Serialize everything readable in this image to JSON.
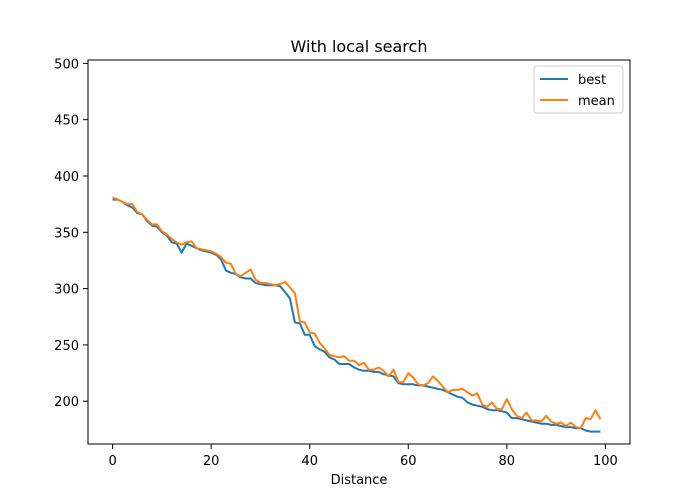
{
  "chart_data": {
    "type": "line",
    "title": "With local search",
    "xlabel": "Distance",
    "ylabel": "",
    "xlim": [
      -5,
      105
    ],
    "ylim": [
      162,
      503
    ],
    "xticks": [
      0,
      20,
      40,
      60,
      80,
      100
    ],
    "yticks": [
      200,
      250,
      300,
      350,
      400,
      450,
      500
    ],
    "grid": false,
    "legend_position": "top-right",
    "series": [
      {
        "name": "best",
        "color": "#1f77b4",
        "x": [
          0,
          1,
          2,
          3,
          4,
          5,
          6,
          7,
          8,
          9,
          10,
          11,
          12,
          13,
          14,
          15,
          16,
          17,
          18,
          19,
          20,
          21,
          22,
          23,
          24,
          25,
          26,
          27,
          28,
          29,
          30,
          31,
          32,
          33,
          34,
          35,
          36,
          37,
          38,
          39,
          40,
          41,
          42,
          43,
          44,
          45,
          46,
          47,
          48,
          49,
          50,
          51,
          52,
          53,
          54,
          55,
          56,
          57,
          58,
          59,
          60,
          61,
          62,
          63,
          64,
          65,
          66,
          67,
          68,
          69,
          70,
          71,
          72,
          73,
          74,
          75,
          76,
          77,
          78,
          79,
          80,
          81,
          82,
          83,
          84,
          85,
          86,
          87,
          88,
          89,
          90,
          91,
          92,
          93,
          94,
          95,
          96,
          97,
          98,
          99
        ],
        "y": [
          379,
          379,
          377,
          374,
          372,
          367,
          366,
          360,
          356,
          355,
          350,
          347,
          341,
          340,
          332,
          340,
          338,
          336,
          334,
          333,
          332,
          330,
          326,
          316,
          314,
          313,
          310,
          309,
          309,
          305,
          304,
          303,
          303,
          303,
          302,
          297,
          291,
          270,
          269,
          259,
          259,
          249,
          246,
          244,
          239,
          237,
          233,
          233,
          233,
          230,
          228,
          227,
          227,
          226,
          226,
          224,
          223,
          222,
          216,
          215,
          215,
          215,
          214,
          214,
          213,
          212,
          211,
          210,
          208,
          206,
          204,
          203,
          199,
          197,
          196,
          195,
          193,
          192,
          192,
          191,
          190,
          185,
          185,
          184,
          183,
          182,
          181,
          180,
          180,
          179,
          179,
          178,
          177,
          177,
          176,
          176,
          174,
          173,
          173,
          173
        ]
      },
      {
        "name": "mean",
        "color": "#ff7f0e",
        "x": [
          0,
          1,
          2,
          3,
          4,
          5,
          6,
          7,
          8,
          9,
          10,
          11,
          12,
          13,
          14,
          15,
          16,
          17,
          18,
          19,
          20,
          21,
          22,
          23,
          24,
          25,
          26,
          27,
          28,
          29,
          30,
          31,
          32,
          33,
          34,
          35,
          36,
          37,
          38,
          39,
          40,
          41,
          42,
          43,
          44,
          45,
          46,
          47,
          48,
          49,
          50,
          51,
          52,
          53,
          54,
          55,
          56,
          57,
          58,
          59,
          60,
          61,
          62,
          63,
          64,
          65,
          66,
          67,
          68,
          69,
          70,
          71,
          72,
          73,
          74,
          75,
          76,
          77,
          78,
          79,
          80,
          81,
          82,
          83,
          84,
          85,
          86,
          87,
          88,
          89,
          90,
          91,
          92,
          93,
          94,
          95,
          96,
          97,
          98,
          99
        ],
        "y": [
          381,
          379,
          377,
          375,
          375,
          368,
          366,
          361,
          357,
          357,
          351,
          348,
          344,
          341,
          339,
          341,
          342,
          336,
          335,
          334,
          333,
          331,
          328,
          323,
          322,
          313,
          311,
          314,
          317,
          308,
          305,
          305,
          304,
          303,
          304,
          306,
          301,
          296,
          271,
          270,
          261,
          260,
          252,
          247,
          241,
          240,
          239,
          240,
          236,
          236,
          232,
          234,
          228,
          228,
          230,
          227,
          222,
          228,
          217,
          217,
          225,
          221,
          215,
          214,
          216,
          222,
          218,
          213,
          208,
          210,
          210,
          211,
          208,
          205,
          207,
          197,
          195,
          199,
          193,
          193,
          202,
          193,
          187,
          185,
          190,
          183,
          183,
          182,
          187,
          182,
          180,
          181,
          178,
          181,
          177,
          176,
          185,
          184,
          192,
          184
        ]
      }
    ]
  }
}
